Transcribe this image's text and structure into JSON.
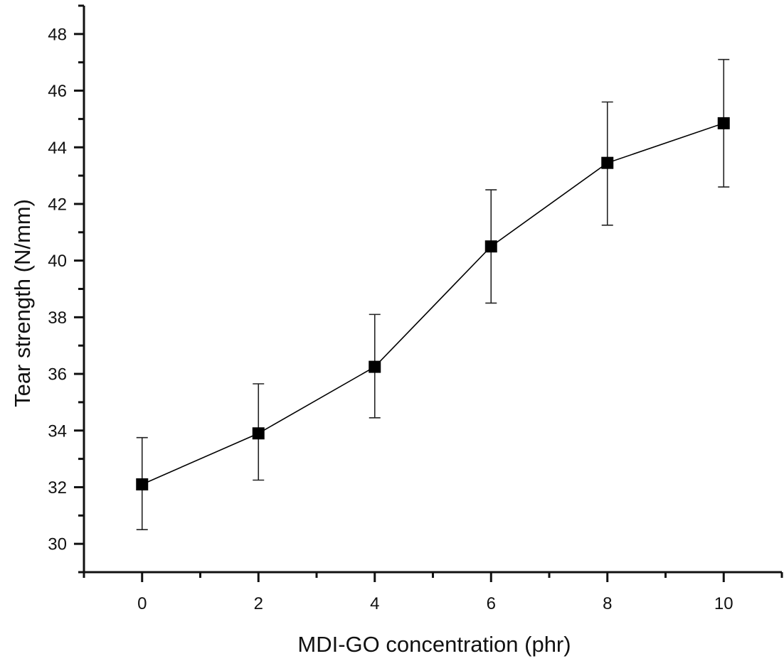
{
  "chart_data": {
    "type": "line",
    "title": "",
    "xlabel": "MDI-GO concentration (phr)",
    "ylabel": "Tear strength (N/mm)",
    "xlim": [
      -1,
      11
    ],
    "ylim": [
      29,
      49
    ],
    "x_ticks": [
      0,
      2,
      4,
      6,
      8,
      10
    ],
    "x_tick_labels": [
      "0",
      "2",
      "4",
      "6",
      "8",
      "10"
    ],
    "x_minor_ticks": [
      -1,
      1,
      3,
      5,
      7,
      9,
      11
    ],
    "y_ticks": [
      30,
      32,
      34,
      36,
      38,
      40,
      42,
      44,
      46,
      48
    ],
    "y_tick_labels": [
      "30",
      "32",
      "34",
      "36",
      "38",
      "40",
      "42",
      "44",
      "46",
      "48"
    ],
    "y_minor_ticks": [
      29,
      31,
      33,
      35,
      37,
      39,
      41,
      43,
      45,
      47,
      49
    ],
    "grid": false,
    "legend": "none",
    "series": [
      {
        "name": "Tear strength",
        "marker": "square",
        "color": "#000000",
        "x": [
          0,
          2,
          4,
          6,
          8,
          10
        ],
        "y": [
          32.1,
          33.9,
          36.25,
          40.5,
          43.45,
          44.85
        ],
        "error_upper": [
          33.75,
          35.65,
          38.1,
          42.5,
          45.6,
          47.1
        ],
        "error_lower": [
          30.5,
          32.25,
          34.45,
          38.5,
          41.25,
          42.6
        ]
      }
    ]
  }
}
